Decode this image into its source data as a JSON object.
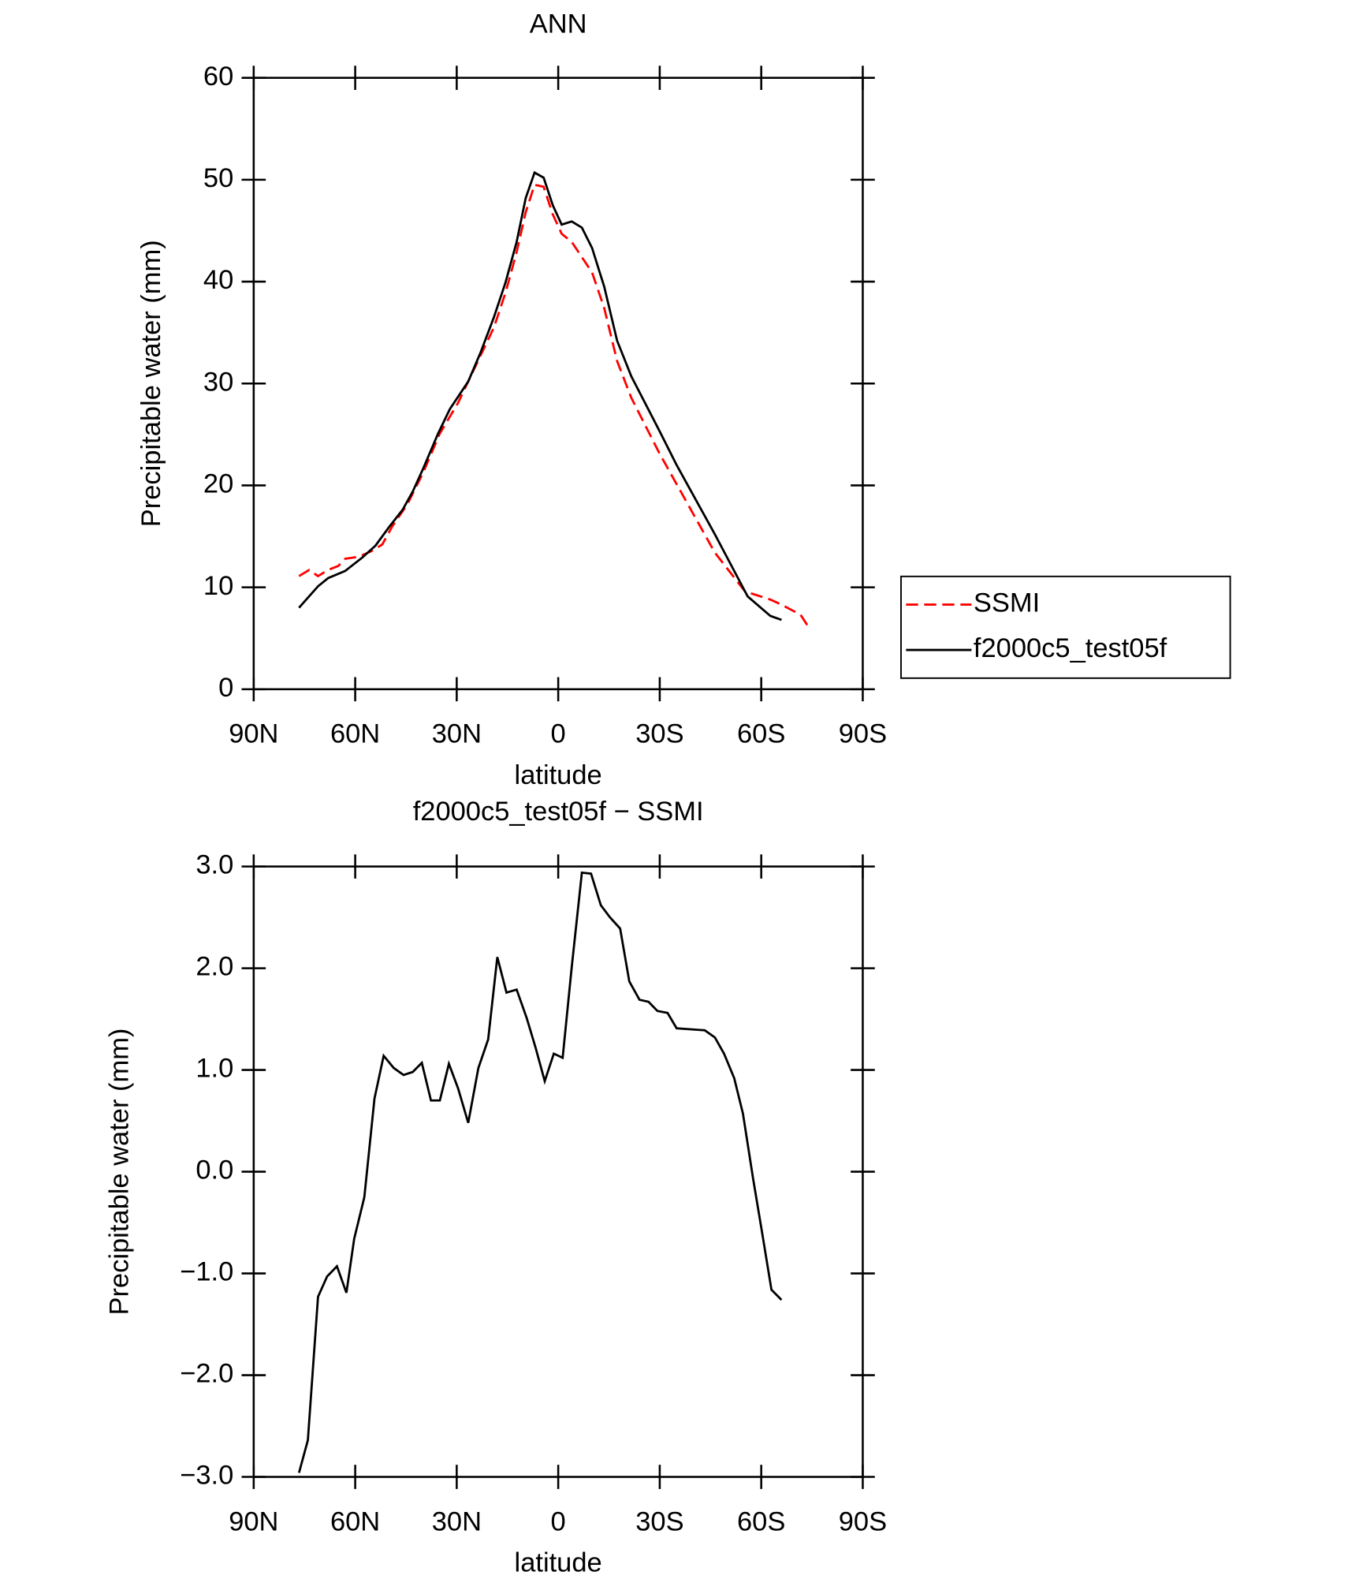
{
  "chart_data": [
    {
      "type": "line",
      "title": "ANN",
      "xlabel": "latitude",
      "ylabel": "Precipitable water (mm)",
      "xlim": [
        90,
        -90
      ],
      "xticks": [
        {
          "value": 90,
          "label": "90N"
        },
        {
          "value": 60,
          "label": "60N"
        },
        {
          "value": 30,
          "label": "30N"
        },
        0,
        {
          "value": -30,
          "label": "30S"
        },
        {
          "value": -60,
          "label": "60S"
        },
        {
          "value": -90,
          "label": "90S"
        }
      ],
      "ylim": [
        0,
        60
      ],
      "yticks": [
        0,
        10,
        20,
        30,
        40,
        50,
        60
      ],
      "legend": "right",
      "series": [
        {
          "name": "SSMI",
          "color": "#ff0000",
          "dashed": true,
          "x": [
            76.6,
            73.6,
            71,
            68,
            65,
            63,
            59,
            55.5,
            52,
            49,
            44.5,
            40,
            35,
            29.6,
            23.6,
            19,
            15.6,
            12.3,
            9.6,
            7,
            4.3,
            1.6,
            -1,
            -4,
            -10,
            -13.6,
            -17.4,
            -21.6,
            -30,
            -46.3,
            -55.2,
            -62.7,
            -66,
            -71.6,
            -74
          ],
          "values": [
            11.1,
            11.7,
            11.1,
            11.7,
            12.1,
            12.8,
            13.0,
            13.5,
            14.2,
            16.0,
            18.2,
            21.2,
            25.1,
            28.1,
            32.3,
            35.5,
            38.9,
            42.9,
            46.8,
            49.5,
            49.3,
            46.6,
            44.7,
            43.9,
            40.9,
            37.4,
            32.2,
            28.6,
            23.1,
            13.4,
            9.6,
            8.8,
            8.3,
            7.3,
            6.1
          ]
        },
        {
          "name": "f2000c5_test05f",
          "color": "#000000",
          "dashed": false,
          "x": [
            76.6,
            71,
            68,
            63,
            58,
            54,
            50,
            46,
            43,
            40,
            35.5,
            32,
            26.6,
            23,
            19,
            15.6,
            12.3,
            9.6,
            7,
            4.3,
            1.6,
            -1,
            -4,
            -7,
            -10,
            -13.6,
            -17.4,
            -21.6,
            -30,
            -35,
            -46.3,
            -56,
            -62.7,
            -66
          ],
          "values": [
            8.0,
            10.1,
            10.9,
            11.6,
            12.9,
            14.1,
            15.9,
            17.6,
            19.4,
            21.6,
            25.1,
            27.5,
            30.2,
            33,
            36.5,
            39.9,
            43.9,
            48.2,
            50.7,
            50.2,
            47.5,
            45.6,
            45.9,
            45.3,
            43.3,
            39.5,
            34.2,
            30.7,
            25.3,
            22,
            15.2,
            9.1,
            7.2,
            6.8
          ]
        }
      ]
    },
    {
      "type": "line",
      "title": "f2000c5_test05f − SSMI",
      "xlabel": "latitude",
      "ylabel": "Precipitable water (mm)",
      "xlim": [
        90,
        -90
      ],
      "xticks": [
        {
          "value": 90,
          "label": "90N"
        },
        {
          "value": 60,
          "label": "60N"
        },
        {
          "value": 30,
          "label": "30N"
        },
        0,
        {
          "value": -30,
          "label": "30S"
        },
        {
          "value": -60,
          "label": "60S"
        },
        {
          "value": -90,
          "label": "90S"
        }
      ],
      "ylim": [
        -3,
        3
      ],
      "yticks": [
        {
          "value": -3,
          "label": "−3.0"
        },
        {
          "value": -2,
          "label": "−2.0"
        },
        {
          "value": -1,
          "label": "−1.0"
        },
        {
          "value": 0,
          "label": "0.0"
        },
        {
          "value": 1,
          "label": "1.0"
        },
        {
          "value": 2,
          "label": "2.0"
        },
        {
          "value": 3,
          "label": "3.0"
        }
      ],
      "series": [
        {
          "color": "#000000",
          "dashed": false,
          "x": [
            76.6,
            74,
            71,
            68.3,
            65.4,
            62.6,
            60.3,
            57.3,
            54.3,
            51.6,
            48.6,
            45.7,
            43,
            40.3,
            37.6,
            35,
            32.3,
            29.6,
            26.6,
            23.6,
            20.7,
            18,
            15.3,
            12.3,
            9.3,
            6.7,
            4,
            1.3,
            -1.3,
            -4,
            -7,
            -9.7,
            -12.6,
            -15.3,
            -18.3,
            -21,
            -24,
            -26.7,
            -29.3,
            -32.3,
            -35,
            -43.3,
            -46.3,
            -49,
            -52,
            -54.6,
            -57.6,
            -60.3,
            -63,
            -66
          ],
          "values": [
            -2.96,
            -2.64,
            -1.23,
            -1.03,
            -0.93,
            -1.19,
            -0.66,
            -0.25,
            0.72,
            1.14,
            1.02,
            0.95,
            0.98,
            1.07,
            0.7,
            0.7,
            1.06,
            0.82,
            0.48,
            1.02,
            1.3,
            2.11,
            1.76,
            1.79,
            1.51,
            1.22,
            0.89,
            1.16,
            1.12,
            2.01,
            2.94,
            2.93,
            2.62,
            2.5,
            2.39,
            1.87,
            1.69,
            1.67,
            1.58,
            1.56,
            1.41,
            1.39,
            1.32,
            1.16,
            0.92,
            0.57,
            -0.07,
            -0.61,
            -1.16,
            -1.26
          ]
        }
      ]
    }
  ]
}
